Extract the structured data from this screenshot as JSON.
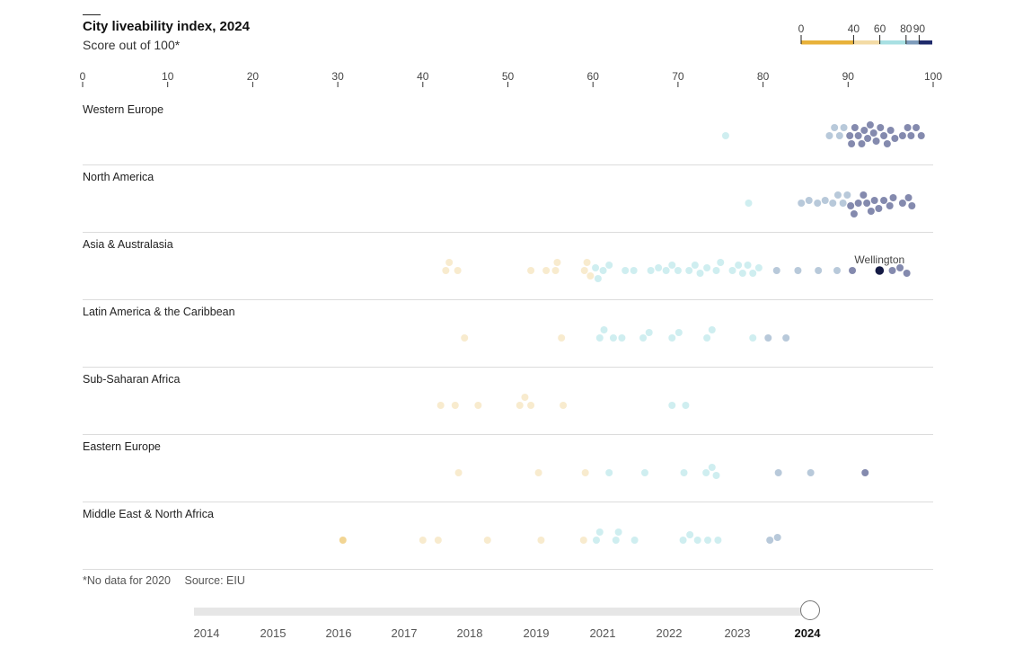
{
  "title": "City liveability index, 2024",
  "subtitle": "Score out of 100*",
  "legend": {
    "labels": [
      "0",
      "40",
      "60",
      "80",
      "90"
    ],
    "breaks": [
      0,
      40,
      60,
      80,
      90,
      100
    ],
    "colors": [
      "#e8b23a",
      "#f3dba5",
      "#a8e0e3",
      "#7e9cbb",
      "#1f2a6b"
    ]
  },
  "footnote": {
    "note": "*No data for 2020",
    "source": "Source: EIU"
  },
  "timeline": {
    "years": [
      "2014",
      "2015",
      "2016",
      "2017",
      "2018",
      "2019",
      "2021",
      "2022",
      "2023",
      "2024"
    ],
    "selected": "2024"
  },
  "chart_data": {
    "type": "scatter",
    "title": "City liveability index, 2024",
    "subtitle": "Score out of 100*",
    "xlim": [
      0,
      100
    ],
    "xticks": [
      0,
      10,
      20,
      30,
      40,
      50,
      60,
      70,
      80,
      90,
      100
    ],
    "highlight": {
      "label": "Wellington",
      "region": "Asia & Australasia",
      "value": 93.7
    },
    "regions": [
      {
        "name": "Western Europe",
        "values": [
          75.6,
          87.8,
          88.4,
          89.0,
          89.5,
          90.2,
          90.4,
          90.8,
          91.2,
          91.6,
          91.9,
          92.3,
          92.6,
          93.0,
          93.3,
          93.8,
          94.2,
          94.6,
          95.0,
          95.5,
          96.4,
          97.0,
          97.4,
          98.0,
          98.6
        ]
      },
      {
        "name": "North America",
        "values": [
          78.3,
          84.5,
          85.4,
          86.4,
          87.3,
          88.2,
          88.8,
          89.4,
          89.9,
          90.3,
          90.7,
          91.2,
          91.8,
          92.2,
          92.7,
          93.1,
          93.6,
          94.2,
          94.9,
          95.3,
          96.4,
          97.1,
          97.5
        ]
      },
      {
        "name": "Asia & Australasia",
        "values": [
          42.7,
          43.1,
          44.1,
          52.7,
          54.5,
          55.6,
          55.8,
          59.0,
          59.3,
          59.7,
          60.3,
          60.6,
          61.2,
          61.9,
          63.8,
          64.8,
          66.8,
          67.7,
          68.6,
          69.3,
          70.0,
          71.3,
          72.0,
          72.6,
          73.4,
          74.5,
          75.0,
          76.4,
          77.1,
          77.6,
          78.2,
          78.8,
          79.5,
          81.6,
          84.1,
          86.5,
          88.7,
          90.5,
          93.7,
          95.2,
          96.1,
          96.9
        ]
      },
      {
        "name": "Latin America & the Caribbean",
        "values": [
          44.9,
          56.3,
          60.8,
          61.3,
          62.4,
          63.4,
          65.9,
          66.6,
          69.3,
          70.1,
          73.4,
          74.0,
          78.8,
          80.6,
          82.7
        ]
      },
      {
        "name": "Sub-Saharan Africa",
        "values": [
          42.1,
          43.8,
          46.5,
          51.4,
          52.0,
          52.7,
          56.5,
          69.3,
          70.9
        ]
      },
      {
        "name": "Eastern Europe",
        "values": [
          44.2,
          53.6,
          59.1,
          61.9,
          66.1,
          70.7,
          73.3,
          74.0,
          74.5,
          81.8,
          85.6,
          92.0
        ]
      },
      {
        "name": "Middle East & North Africa",
        "values": [
          30.6,
          40.0,
          41.8,
          47.6,
          53.9,
          58.9,
          60.4,
          60.8,
          62.7,
          63.0,
          64.9,
          70.6,
          71.4,
          72.3,
          73.5,
          74.7,
          80.8,
          81.7
        ]
      }
    ]
  }
}
